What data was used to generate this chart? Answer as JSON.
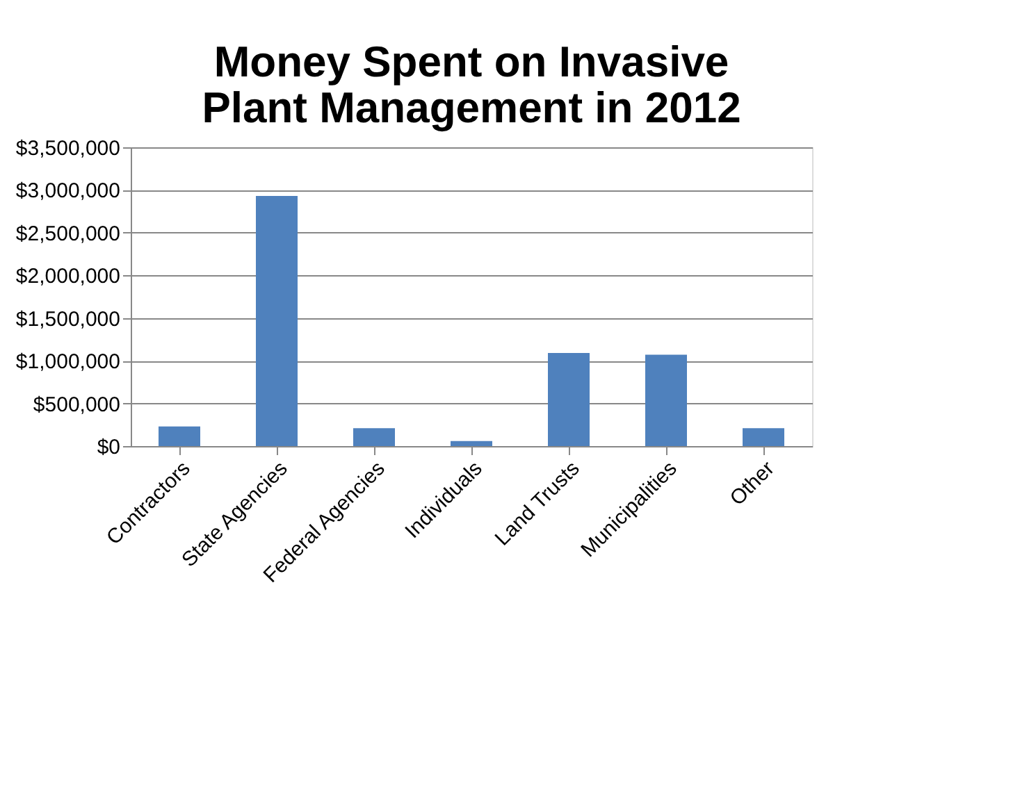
{
  "chart_data": {
    "type": "bar",
    "title": [
      "Money Spent on Invasive",
      "Plant Management in 2012"
    ],
    "categories": [
      "Contractors",
      "State Agencies",
      "Federal Agencies",
      "Individuals",
      "Land Trusts",
      "Municipalities",
      "Other"
    ],
    "values": [
      230000,
      2930000,
      210000,
      60000,
      1090000,
      1070000,
      210000
    ],
    "color": "#4f81bd",
    "ylim": [
      0,
      3500000
    ],
    "yticks": [
      {
        "value": 0,
        "label": "$0"
      },
      {
        "value": 500000,
        "label": "$500,000"
      },
      {
        "value": 1000000,
        "label": "$1,000,000"
      },
      {
        "value": 1500000,
        "label": "$1,500,000"
      },
      {
        "value": 2000000,
        "label": "$2,000,000"
      },
      {
        "value": 2500000,
        "label": "$2,500,000"
      },
      {
        "value": 3000000,
        "label": "$3,000,000"
      },
      {
        "value": 3500000,
        "label": "$3,500,000"
      }
    ],
    "grid": "y"
  }
}
